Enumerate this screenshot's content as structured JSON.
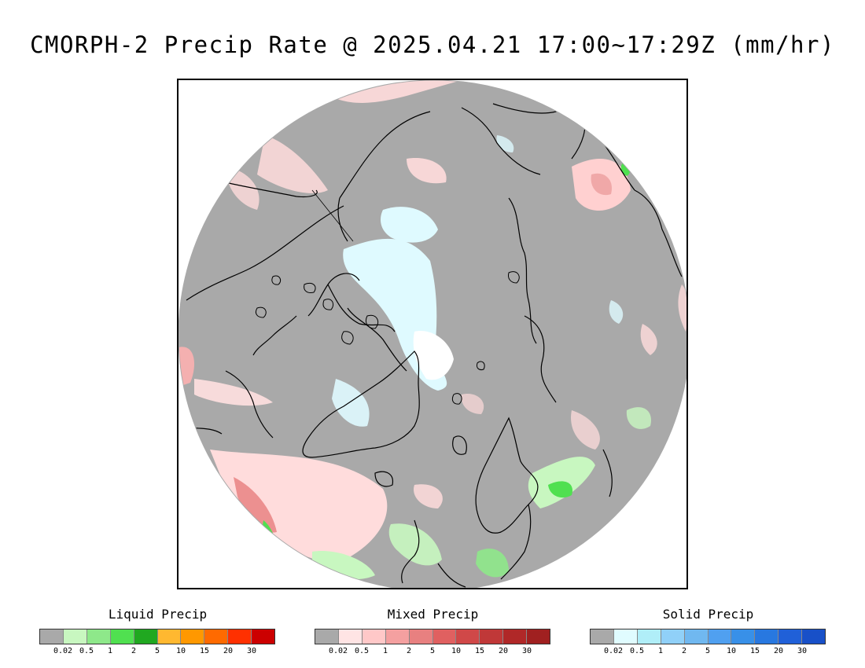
{
  "title": "CMORPH-2 Precip Rate @ 2025.04.21 17:00~17:29Z (mm/hr)",
  "colors": {
    "no_precip": "#a9a9a9",
    "background": "#ffffff",
    "coastline": "#000000"
  },
  "legends": [
    {
      "title": "Liquid Precip",
      "colors": [
        "#a9a9a9",
        "#c8f7c0",
        "#8ee88a",
        "#50e050",
        "#20a820",
        "#ffb830",
        "#ff9800",
        "#ff6a00",
        "#ff3000",
        "#cc0000"
      ],
      "ticks": [
        "0.02",
        "0.5",
        "1",
        "2",
        "5",
        "10",
        "15",
        "20",
        "30"
      ]
    },
    {
      "title": "Mixed Precip",
      "colors": [
        "#a9a9a9",
        "#ffe4e4",
        "#ffc8c8",
        "#f4a0a0",
        "#e88080",
        "#e06060",
        "#d04848",
        "#c03838",
        "#b02828",
        "#a02020"
      ],
      "ticks": [
        "0.02",
        "0.5",
        "1",
        "2",
        "5",
        "10",
        "15",
        "20",
        "30"
      ]
    },
    {
      "title": "Solid Precip",
      "colors": [
        "#a9a9a9",
        "#e0fcff",
        "#b0eef8",
        "#90d0f8",
        "#70b8f0",
        "#50a0f0",
        "#3890e8",
        "#2878e0",
        "#2060d8",
        "#1850c8"
      ],
      "ticks": [
        "0.02",
        "0.5",
        "1",
        "2",
        "5",
        "10",
        "15",
        "20",
        "30"
      ]
    }
  ]
}
